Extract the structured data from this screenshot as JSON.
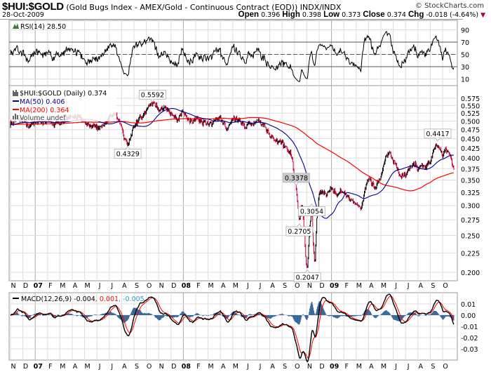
{
  "header": {
    "symbol": "$HUI:$GOLD",
    "description": "(Gold Bugs Index - AMEX/Gold - Continuous Contract (EOD)) INDX/INDX",
    "date": "28-Oct-2009",
    "brand": "© StockCharts.com",
    "open_label": "Open",
    "open": "0.396",
    "high_label": "High",
    "high": "0.398",
    "low_label": "Low",
    "low": "0.373",
    "close_label": "Close",
    "close": "0.374",
    "chg_label": "Chg",
    "chg": "-0.018 (-4.64%)",
    "down_color": "#b00030"
  },
  "chart_data": [
    {
      "type": "line",
      "panel": "rsi",
      "title": "RSI(14) 28.50",
      "yticks": [
        90,
        70,
        50,
        30,
        10
      ],
      "ylim": [
        0,
        100
      ],
      "reference_lines": [
        70,
        50,
        30
      ],
      "last_value": 28.5
    },
    {
      "type": "ohlc",
      "panel": "price",
      "title": "$HUI:$GOLD (Daily) 0.374",
      "scale": "log",
      "legend": [
        {
          "label": "MA(50) 0.406",
          "color": "#00008b"
        },
        {
          "label": "MA(200) 0.364",
          "color": "#ff0000"
        },
        {
          "label": "Volume undef",
          "color": "#666666"
        }
      ],
      "yticks": [
        "0.575",
        "0.550",
        "0.525",
        "0.500",
        "0.475",
        "0.450",
        "0.425",
        "0.400",
        "0.375",
        "0.350",
        "0.325",
        "0.300",
        "0.275",
        "0.250",
        "0.225",
        "0.200"
      ],
      "x_unit": "months since Nov 2006",
      "x_labels": [
        "N",
        "D",
        "07",
        "F",
        "M",
        "A",
        "M",
        "J",
        "J",
        "A",
        "S",
        "O",
        "N",
        "D",
        "08",
        "F",
        "M",
        "A",
        "M",
        "J",
        "J",
        "A",
        "S",
        "O",
        "N",
        "D",
        "09",
        "F",
        "M",
        "A",
        "M",
        "J",
        "J",
        "A",
        "S",
        "O"
      ],
      "price_path": [
        [
          0,
          0.5
        ],
        [
          0.5,
          0.505
        ],
        [
          1,
          0.5
        ],
        [
          1.5,
          0.49
        ],
        [
          2,
          0.5
        ],
        [
          2.5,
          0.5
        ],
        [
          3,
          0.51
        ],
        [
          3.5,
          0.495
        ],
        [
          4,
          0.49
        ],
        [
          4.5,
          0.505
        ],
        [
          5,
          0.5
        ],
        [
          5.5,
          0.51
        ],
        [
          6,
          0.5
        ],
        [
          6.5,
          0.49
        ],
        [
          7,
          0.48
        ],
        [
          7.5,
          0.49
        ],
        [
          8,
          0.52
        ],
        [
          8.5,
          0.53
        ],
        [
          9.2,
          0.45
        ],
        [
          9.5,
          0.435
        ],
        [
          10,
          0.48
        ],
        [
          10.5,
          0.51
        ],
        [
          11,
          0.53
        ],
        [
          11.5,
          0.555
        ],
        [
          12,
          0.54
        ],
        [
          12.5,
          0.54
        ],
        [
          13,
          0.53
        ],
        [
          13.5,
          0.51
        ],
        [
          14,
          0.53
        ],
        [
          14.5,
          0.5
        ],
        [
          15,
          0.51
        ],
        [
          15.5,
          0.5
        ],
        [
          16,
          0.49
        ],
        [
          16.5,
          0.5
        ],
        [
          17,
          0.51
        ],
        [
          17.5,
          0.49
        ],
        [
          18,
          0.5
        ],
        [
          18.5,
          0.5
        ],
        [
          19,
          0.48
        ],
        [
          19.5,
          0.49
        ],
        [
          20,
          0.5
        ],
        [
          20.5,
          0.49
        ],
        [
          21,
          0.47
        ],
        [
          21.5,
          0.44
        ],
        [
          22,
          0.43
        ],
        [
          22.5,
          0.41
        ],
        [
          22.8,
          0.4
        ],
        [
          23,
          0.36
        ],
        [
          23.15,
          0.33
        ],
        [
          23.3,
          0.29
        ],
        [
          23.4,
          0.272
        ],
        [
          23.6,
          0.3
        ],
        [
          23.8,
          0.25
        ],
        [
          23.95,
          0.21
        ],
        [
          24.05,
          0.206
        ],
        [
          24.2,
          0.26
        ],
        [
          24.4,
          0.3
        ],
        [
          24.55,
          0.23
        ],
        [
          24.65,
          0.21
        ],
        [
          24.8,
          0.28
        ],
        [
          25,
          0.32
        ],
        [
          25.3,
          0.33
        ],
        [
          25.6,
          0.32
        ],
        [
          26,
          0.33
        ],
        [
          26.5,
          0.32
        ],
        [
          27,
          0.33
        ],
        [
          27.5,
          0.31
        ],
        [
          28,
          0.3
        ],
        [
          28.4,
          0.29
        ],
        [
          28.7,
          0.33
        ],
        [
          29,
          0.36
        ],
        [
          29.3,
          0.34
        ],
        [
          29.6,
          0.33
        ],
        [
          30,
          0.36
        ],
        [
          30.4,
          0.4
        ],
        [
          30.7,
          0.41
        ],
        [
          31,
          0.39
        ],
        [
          31.3,
          0.37
        ],
        [
          31.6,
          0.35
        ],
        [
          32,
          0.36
        ],
        [
          32.4,
          0.38
        ],
        [
          32.8,
          0.39
        ],
        [
          33,
          0.37
        ],
        [
          33.5,
          0.38
        ],
        [
          34,
          0.39
        ],
        [
          34.3,
          0.43
        ],
        [
          34.6,
          0.44
        ],
        [
          35,
          0.41
        ],
        [
          35.3,
          0.42
        ],
        [
          35.6,
          0.41
        ],
        [
          35.9,
          0.374
        ]
      ],
      "annotations": [
        {
          "label": "0.5592",
          "x": 11.5,
          "value": 0.5592,
          "side": "above"
        },
        {
          "label": "0.4329",
          "x": 9.5,
          "value": 0.4329,
          "side": "below"
        },
        {
          "label": "0.3378",
          "x": 23.15,
          "value": 0.3378,
          "side": "above"
        },
        {
          "label": "0.3054",
          "x": 24.4,
          "value": 0.3054,
          "side": "below"
        },
        {
          "label": "0.2705",
          "x": 23.4,
          "value": 0.2705,
          "side": "below"
        },
        {
          "label": "0.2047",
          "x": 24.05,
          "value": 0.2047,
          "side": "below"
        },
        {
          "label": "0.4417",
          "x": 34.6,
          "value": 0.4417,
          "side": "above"
        }
      ],
      "up_color": "#000000",
      "down_color": "#cc0033"
    },
    {
      "type": "line",
      "panel": "macd",
      "title_main": "MACD(12,26,9) -0.004",
      "title_signal": ", 0.001",
      "title_hist": ", -0.005",
      "colors": {
        "macd": "#000000",
        "signal": "#ff0000",
        "hist": "#336699",
        "hist_label": "#3399cc"
      },
      "yticks": [
        "0.01",
        "0.00",
        "-0.01",
        "-0.02",
        "-0.03"
      ]
    }
  ]
}
